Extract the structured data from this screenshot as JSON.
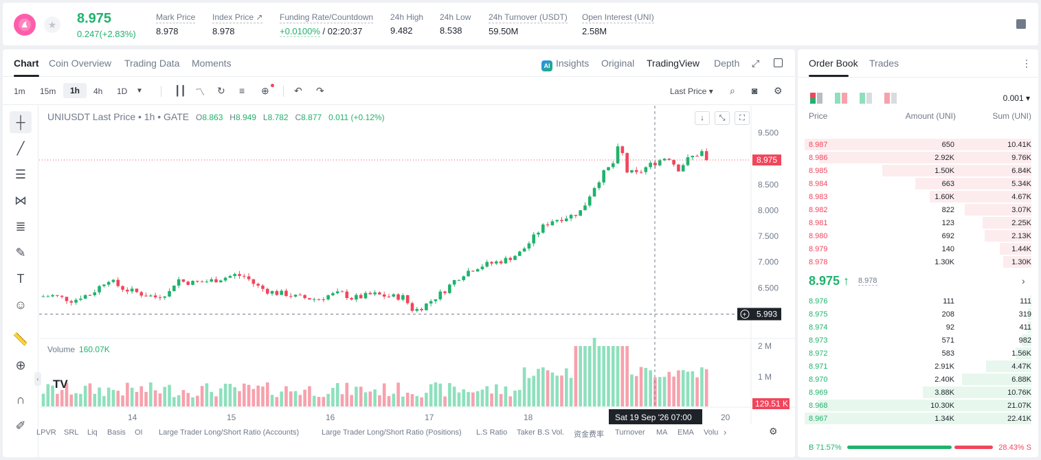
{
  "header": {
    "price": "8.975",
    "change": "0.247(+2.83%)",
    "stats": [
      {
        "label": "Mark Price",
        "value": "8.978"
      },
      {
        "label": "Index Price ↗",
        "value": "8.978"
      },
      {
        "label": "Funding Rate/Countdown",
        "value_green": "+0.0100%",
        "value": "/ 02:20:37"
      },
      {
        "label": "24h High",
        "value": "9.482"
      },
      {
        "label": "24h Low",
        "value": "8.538"
      },
      {
        "label": "24h Turnover (USDT)",
        "value": "59.50M"
      },
      {
        "label": "Open Interest (UNI)",
        "value": "2.58M"
      }
    ]
  },
  "tabs": {
    "left": [
      "Chart",
      "Coin Overview",
      "Trading Data",
      "Moments"
    ],
    "right": [
      "Insights",
      "Original",
      "TradingView",
      "Depth"
    ]
  },
  "toolbar": {
    "intervals": [
      "1m",
      "15m",
      "1h",
      "4h",
      "1D"
    ],
    "price_type": "Last Price ▾"
  },
  "chart": {
    "legend_title": "UNIUSDT Last Price • 1h • GATE",
    "ohlc": {
      "O": "8.863",
      "H": "8.949",
      "L": "8.782",
      "C": "8.877",
      "chg": "0.011 (+0.12%)"
    },
    "volume_label": "Volume",
    "volume_value": "160.07K",
    "price_axis": [
      "9.500",
      "9.000",
      "8.500",
      "8.000",
      "7.500",
      "7.000",
      "6.500",
      "6.000"
    ],
    "volume_axis": [
      "2 M",
      "1 M"
    ],
    "time_axis": [
      "14",
      "15",
      "16",
      "17",
      "18",
      "20"
    ],
    "last_price_tag": "8.975",
    "cross_price_tag": "5.993",
    "volume_tag": "129.51 K",
    "crosshair_time": "Sat 19 Sep '26   07:00",
    "tv_logo": "TV",
    "indicators": [
      "LPVR",
      "SRL",
      "Liq",
      "Basis",
      "OI",
      "Large Trader Long/Short Ratio (Accounts)",
      "Large Trader Long/Short Ratio (Positions)",
      "L.S Ratio",
      "Taker B.S Vol.",
      "资金费率",
      "Turnover",
      "MA",
      "EMA",
      "Volu"
    ]
  },
  "orderbook": {
    "tabs": [
      "Order Book",
      "Trades"
    ],
    "precision": "0.001 ▾",
    "headers": [
      "Price",
      "Amount (UNI)",
      "Sum (UNI)"
    ],
    "asks": [
      {
        "p": "8.987",
        "a": "650",
        "s": "10.41K"
      },
      {
        "p": "8.986",
        "a": "2.92K",
        "s": "9.76K"
      },
      {
        "p": "8.985",
        "a": "1.50K",
        "s": "6.84K"
      },
      {
        "p": "8.984",
        "a": "663",
        "s": "5.34K"
      },
      {
        "p": "8.983",
        "a": "1.60K",
        "s": "4.67K"
      },
      {
        "p": "8.982",
        "a": "822",
        "s": "3.07K"
      },
      {
        "p": "8.981",
        "a": "123",
        "s": "2.25K"
      },
      {
        "p": "8.980",
        "a": "692",
        "s": "2.13K"
      },
      {
        "p": "8.979",
        "a": "140",
        "s": "1.44K"
      },
      {
        "p": "8.978",
        "a": "1.30K",
        "s": "1.30K"
      }
    ],
    "mid_price": "8.975 ↑",
    "mark": "8.978",
    "bids": [
      {
        "p": "8.976",
        "a": "111",
        "s": "111"
      },
      {
        "p": "8.975",
        "a": "208",
        "s": "319"
      },
      {
        "p": "8.974",
        "a": "92",
        "s": "411"
      },
      {
        "p": "8.973",
        "a": "571",
        "s": "982"
      },
      {
        "p": "8.972",
        "a": "583",
        "s": "1.56K"
      },
      {
        "p": "8.971",
        "a": "2.91K",
        "s": "4.47K"
      },
      {
        "p": "8.970",
        "a": "2.40K",
        "s": "6.88K"
      },
      {
        "p": "8.969",
        "a": "3.88K",
        "s": "10.76K"
      },
      {
        "p": "8.968",
        "a": "10.30K",
        "s": "21.07K"
      },
      {
        "p": "8.967",
        "a": "1.34K",
        "s": "22.41K"
      }
    ],
    "buy_ratio": "B 71.57%",
    "sell_ratio": "28.43% S",
    "buy_fraction": 0.7157
  },
  "colors": {
    "up": "#20b26c",
    "down": "#f0465c",
    "up_vol": "#8ee0bd",
    "down_vol": "#f7a1ad"
  }
}
